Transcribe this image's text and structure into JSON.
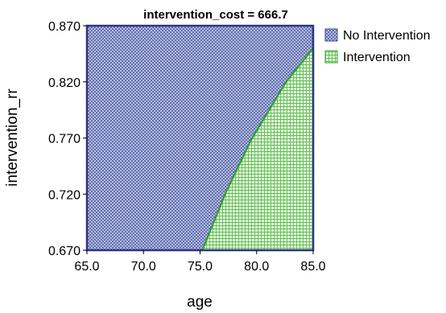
{
  "chart_data": {
    "type": "area",
    "title": "intervention_cost = 666.7",
    "xlabel": "age",
    "ylabel": "intervention_rr",
    "xlim": [
      65.0,
      85.0
    ],
    "ylim": [
      0.67,
      0.87
    ],
    "x_ticks": [
      "65.0",
      "70.0",
      "75.0",
      "80.0",
      "85.0"
    ],
    "y_ticks": [
      "0.670",
      "0.720",
      "0.770",
      "0.820",
      "0.870"
    ],
    "grid": false,
    "legend_position": "right",
    "series": [
      {
        "name": "No Intervention",
        "color": "#3a4ea0",
        "pattern": "crosshatch-dense"
      },
      {
        "name": "Intervention",
        "color": "#33a63a",
        "pattern": "grid"
      }
    ],
    "boundary": {
      "x": [
        75.2,
        77.3,
        79.5,
        82.6,
        85.0
      ],
      "y": [
        0.67,
        0.722,
        0.768,
        0.82,
        0.85
      ]
    }
  }
}
